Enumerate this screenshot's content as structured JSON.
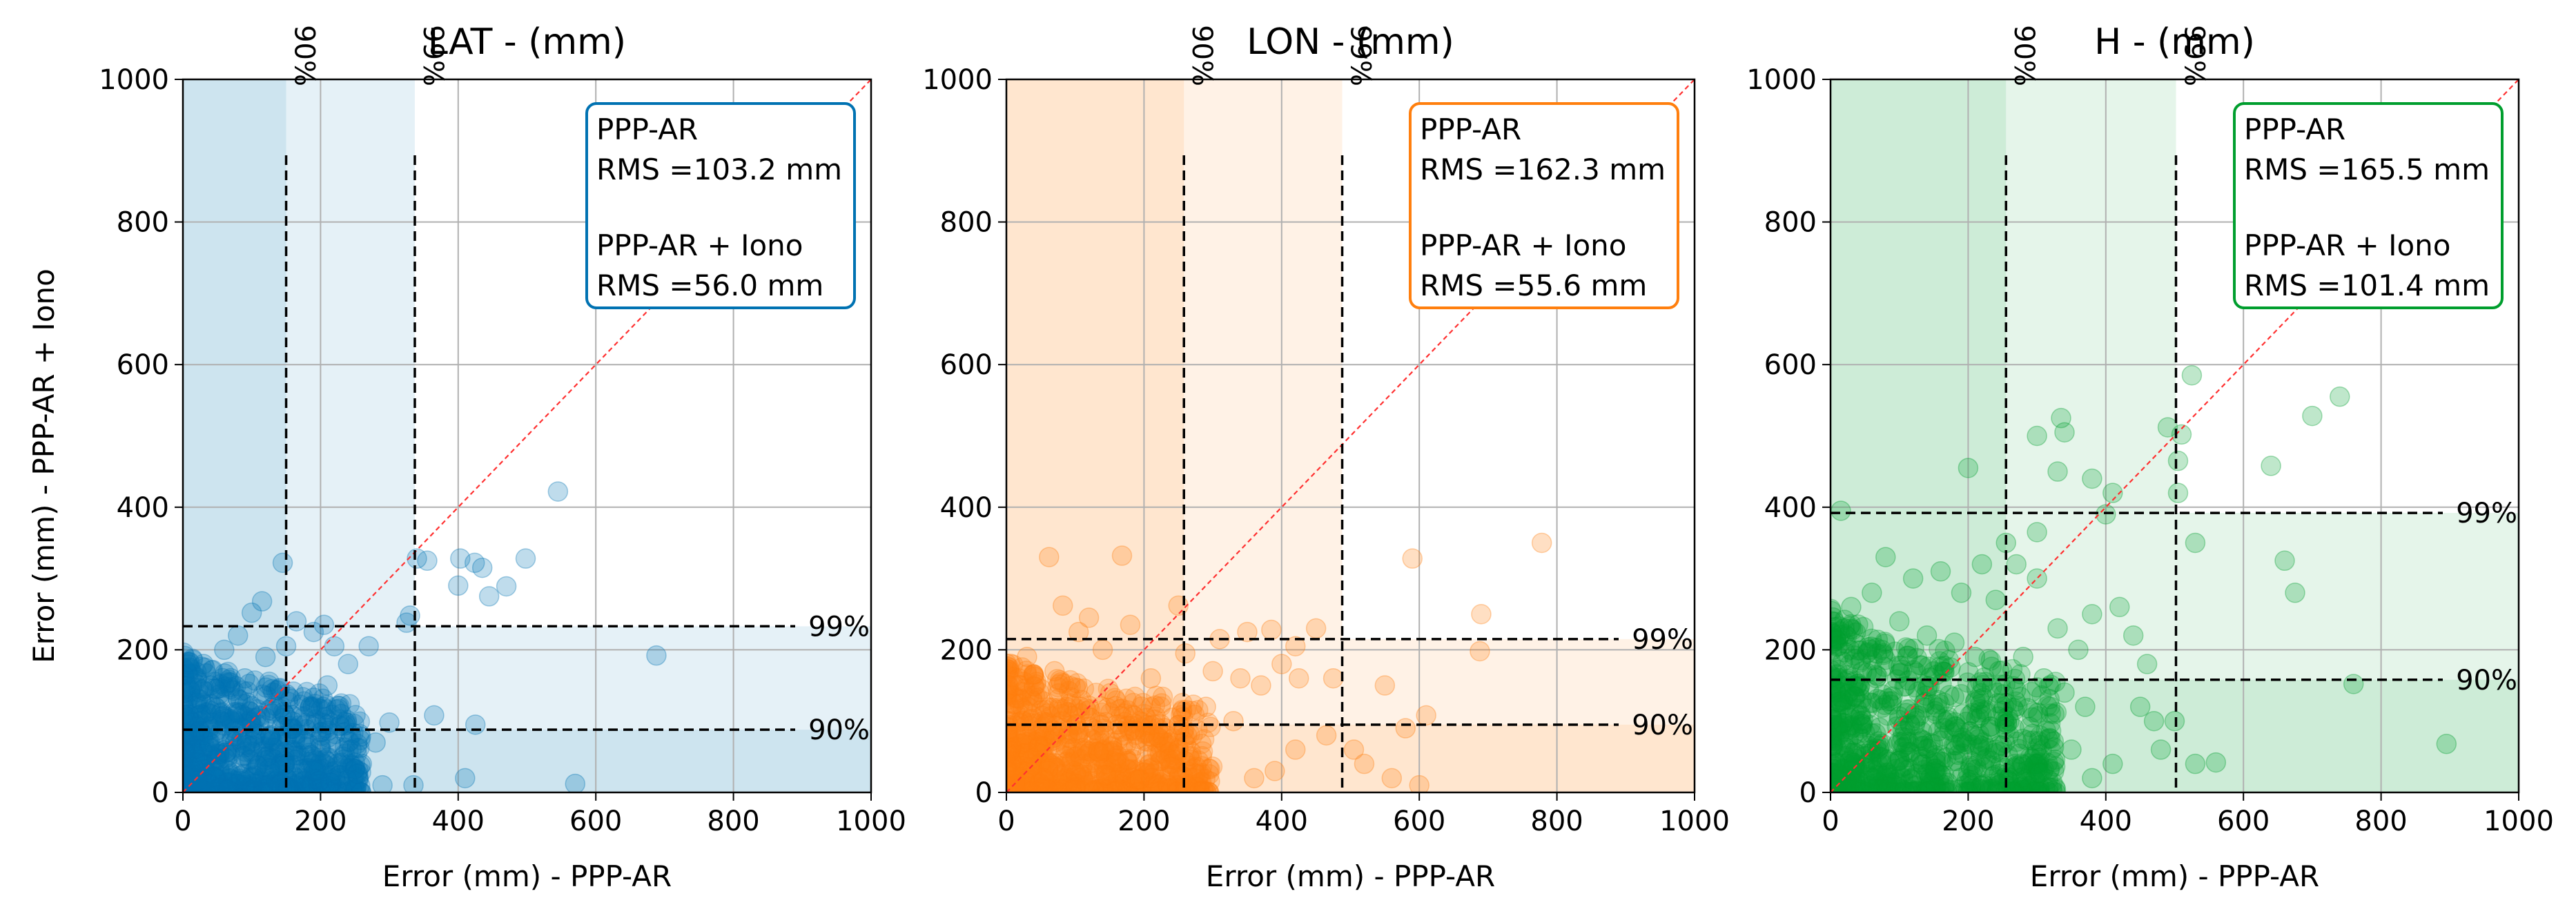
{
  "figure": {
    "ylabel": "Error  (mm) - PPP-AR + Iono",
    "xlabel": "Error  (mm) - PPP-AR"
  },
  "chart_data": [
    {
      "type": "scatter",
      "title": "LAT - (mm)",
      "xlabel": "Error  (mm) - PPP-AR",
      "ylabel": "Error  (mm) - PPP-AR + Iono",
      "xlim": [
        0,
        1000
      ],
      "ylim": [
        0,
        1000
      ],
      "xticks": [
        0,
        200,
        400,
        600,
        800,
        1000
      ],
      "yticks": [
        0,
        200,
        400,
        600,
        800,
        1000
      ],
      "grid": true,
      "color": "#0072b2",
      "dense_cluster": {
        "x_range": [
          0,
          260
        ],
        "y_range": [
          0,
          200
        ]
      },
      "percentiles_x": [
        {
          "label": "90%",
          "value": 150
        },
        {
          "label": "99%",
          "value": 337
        }
      ],
      "percentiles_y": [
        {
          "label": "90%",
          "value": 88
        },
        {
          "label": "99%",
          "value": 233
        }
      ],
      "diagonal": "y = x",
      "legend": {
        "position": "top-right",
        "lines": [
          "PPP-AR",
          "RMS =103.2 mm",
          "",
          "PPP-AR + Iono",
          "RMS =56.0 mm"
        ]
      },
      "points": [
        [
          545,
          422
        ],
        [
          498,
          328
        ],
        [
          424,
          322
        ],
        [
          403,
          328
        ],
        [
          435,
          315
        ],
        [
          470,
          289
        ],
        [
          445,
          275
        ],
        [
          400,
          290
        ],
        [
          340,
          328
        ],
        [
          355,
          325
        ],
        [
          330,
          248
        ],
        [
          325,
          238
        ],
        [
          688,
          192
        ],
        [
          365,
          108
        ],
        [
          425,
          95
        ],
        [
          570,
          12
        ],
        [
          410,
          20
        ],
        [
          145,
          322
        ],
        [
          115,
          268
        ],
        [
          100,
          252
        ],
        [
          165,
          240
        ],
        [
          205,
          235
        ],
        [
          190,
          225
        ],
        [
          150,
          205
        ],
        [
          120,
          190
        ],
        [
          80,
          220
        ],
        [
          60,
          200
        ],
        [
          30,
          180
        ],
        [
          10,
          175
        ],
        [
          220,
          205
        ],
        [
          240,
          180
        ],
        [
          270,
          205
        ],
        [
          210,
          150
        ],
        [
          230,
          110
        ],
        [
          185,
          120
        ],
        [
          90,
          160
        ],
        [
          40,
          150
        ],
        [
          245,
          60
        ],
        [
          280,
          70
        ],
        [
          260,
          40
        ],
        [
          300,
          98
        ],
        [
          220,
          30
        ],
        [
          175,
          15
        ],
        [
          290,
          10
        ],
        [
          335,
          10
        ]
      ]
    },
    {
      "type": "scatter",
      "title": "LON - (mm)",
      "xlabel": "Error  (mm) - PPP-AR",
      "ylabel": "",
      "xlim": [
        0,
        1000
      ],
      "ylim": [
        0,
        1000
      ],
      "xticks": [
        0,
        200,
        400,
        600,
        800,
        1000
      ],
      "yticks": [
        0,
        200,
        400,
        600,
        800,
        1000
      ],
      "grid": true,
      "color": "#ff7f0e",
      "dense_cluster": {
        "x_range": [
          0,
          300
        ],
        "y_range": [
          0,
          190
        ]
      },
      "percentiles_x": [
        {
          "label": "90%",
          "value": 258
        },
        {
          "label": "99%",
          "value": 488
        }
      ],
      "percentiles_y": [
        {
          "label": "90%",
          "value": 95
        },
        {
          "label": "99%",
          "value": 215
        }
      ],
      "diagonal": "y = x",
      "legend": {
        "position": "top-right",
        "lines": [
          "PPP-AR",
          "RMS =162.3 mm",
          "",
          "PPP-AR + Iono",
          "RMS =55.6 mm"
        ]
      },
      "points": [
        [
          778,
          350
        ],
        [
          590,
          328
        ],
        [
          690,
          250
        ],
        [
          688,
          198
        ],
        [
          62,
          330
        ],
        [
          168,
          332
        ],
        [
          250,
          262
        ],
        [
          82,
          262
        ],
        [
          120,
          245
        ],
        [
          105,
          225
        ],
        [
          180,
          235
        ],
        [
          310,
          215
        ],
        [
          350,
          225
        ],
        [
          385,
          228
        ],
        [
          450,
          230
        ],
        [
          420,
          205
        ],
        [
          260,
          195
        ],
        [
          300,
          170
        ],
        [
          340,
          160
        ],
        [
          370,
          150
        ],
        [
          400,
          180
        ],
        [
          425,
          160
        ],
        [
          475,
          160
        ],
        [
          550,
          150
        ],
        [
          610,
          108
        ],
        [
          465,
          80
        ],
        [
          505,
          60
        ],
        [
          520,
          40
        ],
        [
          420,
          60
        ],
        [
          390,
          30
        ],
        [
          360,
          20
        ],
        [
          600,
          10
        ],
        [
          580,
          90
        ],
        [
          560,
          20
        ],
        [
          330,
          100
        ],
        [
          290,
          120
        ],
        [
          30,
          190
        ],
        [
          20,
          150
        ],
        [
          70,
          170
        ],
        [
          140,
          200
        ],
        [
          210,
          160
        ],
        [
          230,
          90
        ],
        [
          250,
          60
        ]
      ]
    },
    {
      "type": "scatter",
      "title": "H - (mm)",
      "xlabel": "Error  (mm) - PPP-AR",
      "ylabel": "",
      "xlim": [
        0,
        1000
      ],
      "ylim": [
        0,
        1000
      ],
      "xticks": [
        0,
        200,
        400,
        600,
        800,
        1000
      ],
      "yticks": [
        0,
        200,
        400,
        600,
        800,
        1000
      ],
      "grid": true,
      "color": "#009e2e",
      "dense_cluster": {
        "x_range": [
          0,
          330
        ],
        "y_range": [
          0,
          260
        ]
      },
      "percentiles_x": [
        {
          "label": "90%",
          "value": 255
        },
        {
          "label": "99%",
          "value": 502
        }
      ],
      "percentiles_y": [
        {
          "label": "90%",
          "value": 158
        },
        {
          "label": "99%",
          "value": 392
        }
      ],
      "diagonal": "y = x",
      "legend": {
        "position": "top-right",
        "lines": [
          "PPP-AR",
          "RMS =165.5 mm",
          "",
          "PPP-AR + Iono",
          "RMS =101.4 mm"
        ]
      },
      "points": [
        [
          525,
          585
        ],
        [
          740,
          555
        ],
        [
          700,
          528
        ],
        [
          335,
          525
        ],
        [
          340,
          505
        ],
        [
          490,
          512
        ],
        [
          510,
          502
        ],
        [
          300,
          500
        ],
        [
          640,
          458
        ],
        [
          330,
          450
        ],
        [
          380,
          440
        ],
        [
          505,
          465
        ],
        [
          505,
          420
        ],
        [
          400,
          390
        ],
        [
          200,
          455
        ],
        [
          410,
          420
        ],
        [
          530,
          350
        ],
        [
          15,
          395
        ],
        [
          300,
          365
        ],
        [
          255,
          350
        ],
        [
          660,
          325
        ],
        [
          675,
          280
        ],
        [
          760,
          152
        ],
        [
          895,
          68
        ],
        [
          530,
          40
        ],
        [
          560,
          42
        ],
        [
          420,
          260
        ],
        [
          380,
          250
        ],
        [
          440,
          220
        ],
        [
          460,
          180
        ],
        [
          360,
          200
        ],
        [
          330,
          230
        ],
        [
          450,
          120
        ],
        [
          470,
          100
        ],
        [
          500,
          100
        ],
        [
          480,
          60
        ],
        [
          410,
          40
        ],
        [
          380,
          20
        ],
        [
          350,
          60
        ],
        [
          300,
          300
        ],
        [
          270,
          320
        ],
        [
          220,
          320
        ],
        [
          190,
          280
        ],
        [
          240,
          270
        ],
        [
          160,
          310
        ],
        [
          120,
          300
        ],
        [
          80,
          330
        ],
        [
          60,
          280
        ],
        [
          30,
          260
        ],
        [
          20,
          230
        ],
        [
          100,
          240
        ],
        [
          140,
          220
        ],
        [
          180,
          210
        ],
        [
          210,
          190
        ],
        [
          280,
          190
        ],
        [
          310,
          160
        ],
        [
          340,
          140
        ],
        [
          370,
          120
        ],
        [
          260,
          100
        ]
      ]
    }
  ]
}
